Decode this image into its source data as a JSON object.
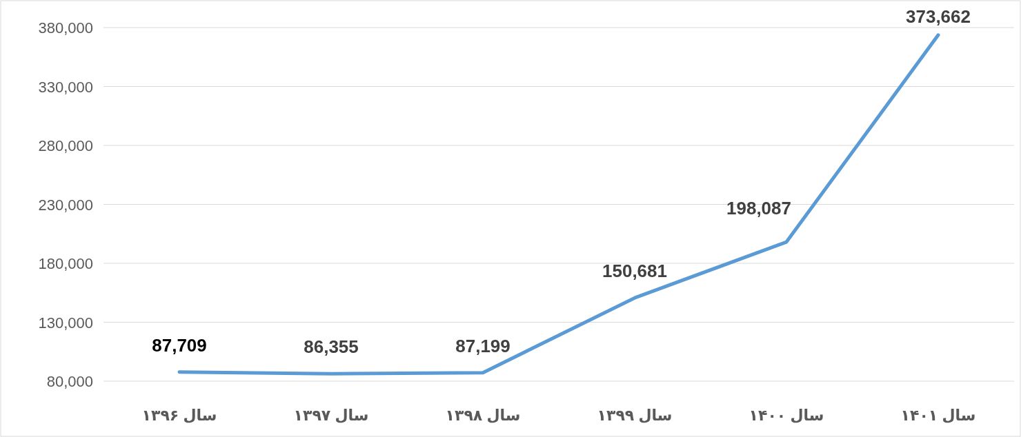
{
  "chart_data": {
    "type": "line",
    "categories": [
      "سال ۱۳۹۶",
      "سال ۱۳۹۷",
      "سال ۱۳۹۸",
      "سال ۱۳۹۹",
      "سال ۱۴۰۰",
      "سال ۱۴۰۱"
    ],
    "series": [
      {
        "color": "#5b9bd5",
        "values": [
          87709,
          86355,
          87199,
          150681,
          198087,
          373662
        ],
        "value_labels": [
          "87,709",
          "86,355",
          "87,199",
          "150,681",
          "198,087",
          "373,662"
        ]
      }
    ],
    "ylim": [
      80000,
      380000
    ],
    "yticks": [
      {
        "value": 80000,
        "label": "80,000"
      },
      {
        "value": 130000,
        "label": "130,000"
      },
      {
        "value": 180000,
        "label": "180,000"
      },
      {
        "value": 230000,
        "label": "230,000"
      },
      {
        "value": 280000,
        "label": "280,000"
      },
      {
        "value": 330000,
        "label": "330,000"
      },
      {
        "value": 380000,
        "label": "380,000"
      }
    ],
    "grid": "y",
    "marker": "none",
    "line_style": "solid"
  }
}
